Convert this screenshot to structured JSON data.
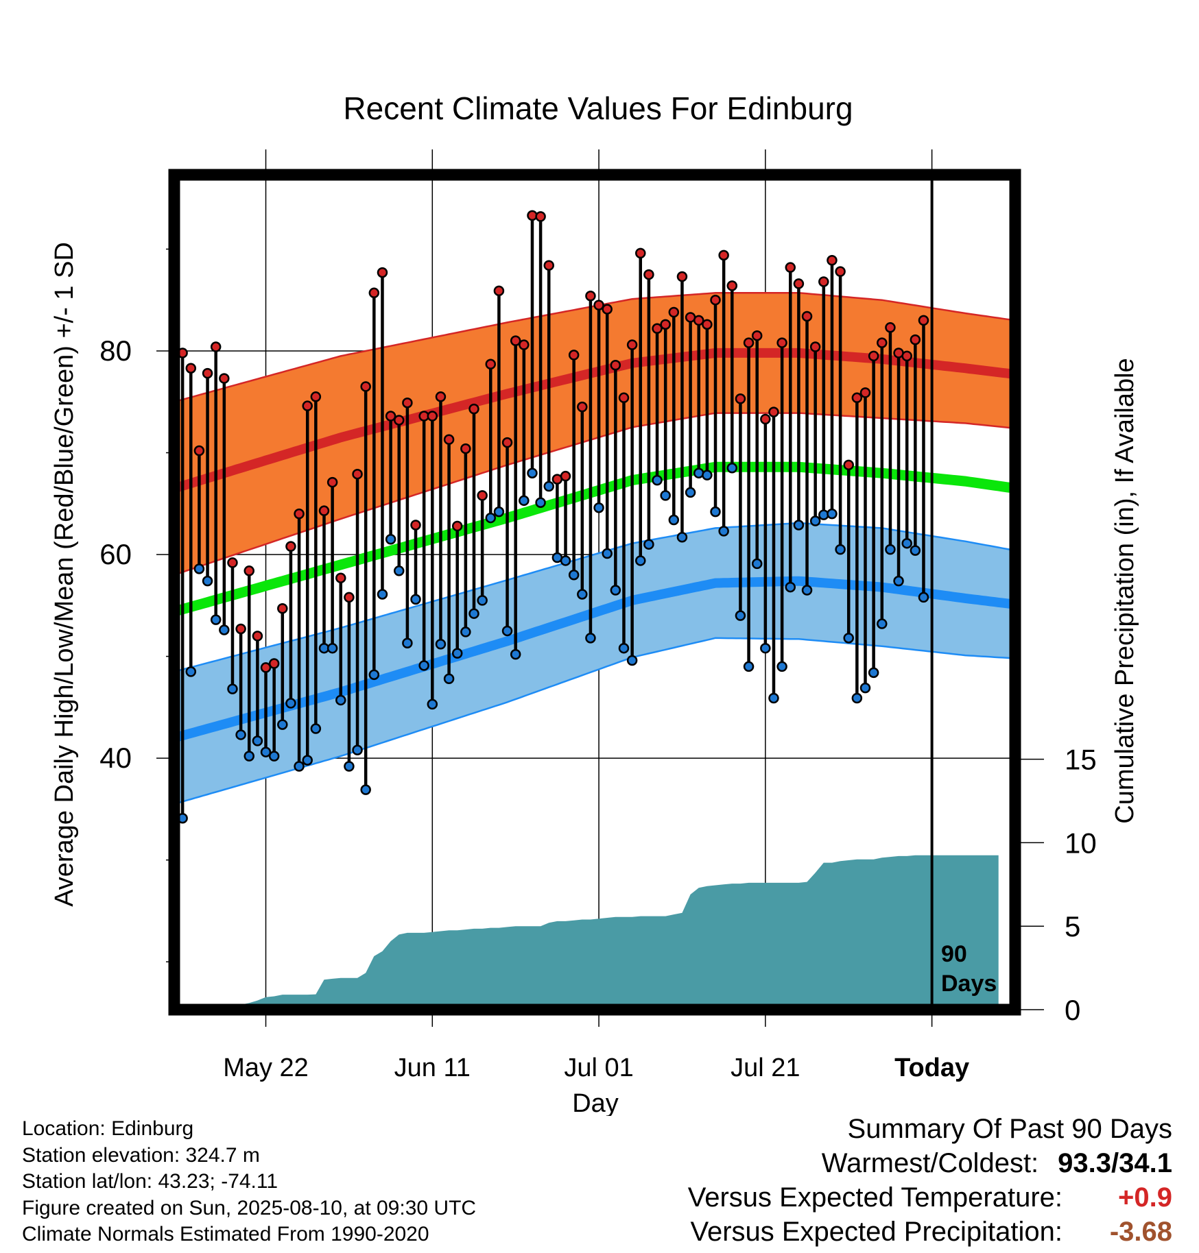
{
  "chart_data": {
    "type": "line",
    "title": "Recent Climate Values For Edinburg",
    "xlabel": "Day",
    "ylabel": "Average Daily High/Low/Mean (Red/Blue/Green) +/- 1 SD",
    "y2label": "Cumulative Precipitation (in), If Available",
    "x_tick_labels": [
      "May 22",
      "Jun 11",
      "Jul 01",
      "Jul 21",
      "Today"
    ],
    "x_tick_days": [
      11,
      31,
      51,
      71,
      91
    ],
    "x_range_days": [
      0,
      101
    ],
    "ylim": [
      15.3,
      97.3
    ],
    "yticks": [
      40,
      60,
      80
    ],
    "y2ticks": [
      0,
      5,
      10,
      15
    ],
    "y2lim": [
      0,
      50
    ],
    "grid": true,
    "today_marker": {
      "day": 91,
      "label_1": "90",
      "label_2": "Days"
    },
    "colors": {
      "high_band": "#f47a30",
      "high_mean": "#d42626",
      "low_band": "#85bfe8",
      "low_mean": "#1e8cf5",
      "mean": "#0ae60a",
      "precip": "#4a9ba5",
      "high_dot": "#d42626",
      "low_dot": "#1e78d2"
    },
    "normals": {
      "day": [
        0,
        20,
        40,
        55,
        65,
        75,
        85,
        95,
        101
      ],
      "high_mean": [
        66.5,
        71.5,
        75.8,
        78.8,
        79.8,
        79.8,
        79.2,
        78.3,
        77.7
      ],
      "high_sd": [
        8.5,
        8.0,
        7.0,
        6.3,
        5.9,
        5.9,
        5.8,
        5.4,
        5.3
      ],
      "low_mean": [
        42.0,
        46.5,
        51.5,
        55.5,
        57.2,
        57.4,
        56.8,
        55.7,
        55.1
      ],
      "low_sd": [
        6.5,
        6.3,
        6.0,
        5.6,
        5.4,
        5.7,
        5.8,
        5.6,
        5.3
      ],
      "mean": [
        54.4,
        59.0,
        63.6,
        67.3,
        68.6,
        68.6,
        68.0,
        67.2,
        66.5
      ]
    },
    "series": [
      {
        "name": "Daily high",
        "values": [
          79.8,
          78.3,
          70.2,
          77.8,
          80.4,
          77.3,
          59.2,
          52.7,
          58.4,
          52.0,
          48.9,
          49.3,
          54.7,
          60.8,
          64.0,
          74.6,
          75.5,
          64.3,
          67.1,
          57.7,
          55.8,
          67.9,
          76.5,
          85.7,
          87.7,
          73.6,
          73.2,
          74.9,
          62.9,
          73.6,
          73.6,
          75.5,
          71.3,
          62.8,
          70.4,
          74.3,
          65.8,
          78.7,
          85.9,
          71.0,
          81.0,
          80.6,
          93.3,
          93.2,
          88.4,
          67.4,
          67.7,
          79.6,
          74.5,
          85.4,
          84.5,
          84.1,
          78.6,
          75.4,
          80.6,
          89.6,
          87.5,
          82.2,
          82.6,
          83.8,
          87.3,
          83.3,
          83.0,
          82.6,
          85.0,
          89.4,
          86.4,
          75.3,
          80.8,
          81.5,
          73.3,
          74.0,
          80.8,
          88.2,
          86.6,
          83.4,
          80.4,
          86.8,
          88.9,
          87.8,
          68.8,
          75.4,
          75.9,
          79.5,
          80.8,
          82.3,
          79.8,
          79.5,
          81.1,
          83.0
        ]
      },
      {
        "name": "Daily low",
        "values": [
          34.1,
          48.5,
          58.6,
          57.4,
          53.6,
          52.6,
          46.8,
          42.3,
          40.2,
          41.7,
          40.6,
          40.2,
          43.3,
          45.4,
          39.2,
          39.8,
          42.9,
          50.8,
          50.8,
          45.7,
          39.2,
          40.8,
          36.9,
          48.2,
          56.1,
          61.5,
          58.4,
          51.3,
          55.6,
          49.1,
          45.3,
          51.2,
          47.8,
          50.3,
          52.4,
          54.2,
          55.5,
          63.6,
          64.2,
          52.5,
          50.2,
          65.3,
          68.0,
          65.1,
          66.7,
          59.7,
          59.4,
          58.0,
          56.1,
          51.8,
          64.6,
          60.1,
          56.5,
          50.8,
          49.6,
          59.4,
          61.0,
          67.3,
          65.8,
          63.4,
          61.7,
          66.1,
          68.0,
          67.8,
          64.2,
          62.3,
          68.5,
          54.0,
          49.0,
          59.1,
          50.8,
          45.9,
          49.0,
          56.8,
          62.9,
          56.5,
          63.3,
          63.9,
          64.0,
          60.5,
          51.8,
          45.9,
          46.9,
          48.4,
          53.2,
          60.5,
          57.4,
          61.1,
          60.4,
          55.8
        ]
      },
      {
        "name": "Cumulative precipitation",
        "values": [
          0,
          0,
          0,
          0,
          0,
          0.05,
          0.15,
          0.2,
          0.3,
          0.4,
          0.55,
          0.75,
          0.8,
          0.9,
          0.9,
          0.9,
          0.9,
          0.92,
          1.8,
          1.85,
          1.9,
          1.9,
          1.9,
          2.2,
          3.2,
          3.5,
          4.1,
          4.5,
          4.6,
          4.6,
          4.6,
          4.65,
          4.7,
          4.75,
          4.75,
          4.8,
          4.85,
          4.85,
          4.9,
          4.9,
          4.95,
          5.0,
          5.0,
          5.0,
          5.0,
          5.2,
          5.3,
          5.3,
          5.35,
          5.4,
          5.4,
          5.45,
          5.5,
          5.55,
          5.55,
          5.55,
          5.6,
          5.6,
          5.6,
          5.6,
          5.7,
          5.8,
          6.9,
          7.3,
          7.4,
          7.45,
          7.5,
          7.55,
          7.55,
          7.6,
          7.6,
          7.6,
          7.6,
          7.6,
          7.6,
          7.6,
          7.65,
          8.2,
          8.8,
          8.8,
          8.9,
          8.95,
          9.0,
          9.0,
          9.0,
          9.1,
          9.15,
          9.2,
          9.2,
          9.25,
          9.25,
          9.25,
          9.25,
          9.25,
          9.25,
          9.25,
          9.25,
          9.25,
          9.25,
          9.25
        ]
      }
    ]
  },
  "info": {
    "location": "Location: Edinburg",
    "elevation": "Station elevation: 324.7 m",
    "latlon": "Station lat/lon: 43.23; -74.11",
    "created": "Figure created on Sun, 2025-08-10, at 09:30 UTC",
    "normals": "Climate Normals Estimated From 1990-2020"
  },
  "summary": {
    "heading": "Summary Of Past 90 Days",
    "warm_cold_label": "Warmest/Coldest:",
    "warm_cold_value": "93.3/34.1",
    "temp_label": "Versus Expected Temperature:",
    "temp_value": "+0.9",
    "temp_color": "#d42626",
    "precip_label": "Versus Expected Precipitation:",
    "precip_value": "-3.68",
    "precip_color": "#a0522d"
  }
}
